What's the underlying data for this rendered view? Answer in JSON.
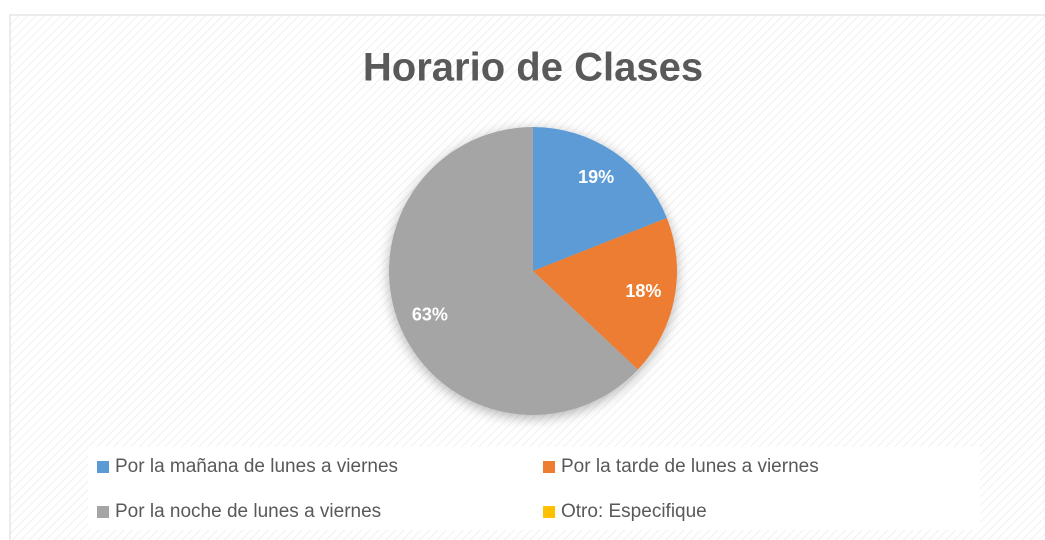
{
  "chart_data": {
    "type": "pie",
    "title": "Horario de Clases",
    "categories": [
      "Por la mañana de lunes a viernes",
      "Por la tarde de lunes a viernes",
      "Por la noche de lunes a viernes",
      "Otro: Especifique"
    ],
    "values": [
      19,
      18,
      63,
      0
    ],
    "value_labels": [
      "19%",
      "18%",
      "63%",
      null
    ],
    "colors": [
      "#5b9bd5",
      "#ed7d31",
      "#a5a5a5",
      "#ffc000"
    ],
    "legend": "bottom"
  }
}
